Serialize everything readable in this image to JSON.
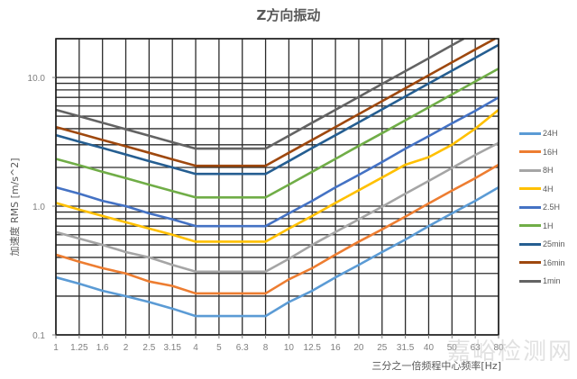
{
  "page": {
    "title": "Z方向振动",
    "ylabel": "加速度 RMS [m/s^2]",
    "xlabel": "三分之一倍频程中心频率[Hz]",
    "watermark": "嘉峪检测网"
  },
  "chart_data": {
    "type": "line",
    "title": "Z方向振动",
    "xlabel": "三分之一倍频程中心频率[Hz]",
    "ylabel": "加速度 RMS [m/s^2]",
    "yscale": "log",
    "ylim": [
      0.1,
      20
    ],
    "yticks": [
      {
        "value": 0.1,
        "label": "0.1"
      },
      {
        "value": 1.0,
        "label": "1.0"
      },
      {
        "value": 10.0,
        "label": "10.0"
      }
    ],
    "grid": true,
    "legend_position": "right",
    "categories": [
      "1",
      "1.25",
      "1.6",
      "2",
      "2.5",
      "3.15",
      "4",
      "5",
      "6.3",
      "8",
      "10",
      "12.5",
      "16",
      "20",
      "25",
      "31.5",
      "40",
      "50",
      "63",
      "80"
    ],
    "series": [
      {
        "name": "24H",
        "color": "#5b9bd5",
        "values": [
          0.28,
          0.25,
          0.22,
          0.2,
          0.18,
          0.16,
          0.14,
          0.14,
          0.14,
          0.14,
          0.18,
          0.22,
          0.28,
          0.35,
          0.44,
          0.55,
          0.7,
          0.88,
          1.1,
          1.4
        ]
      },
      {
        "name": "16H",
        "color": "#ed7d31",
        "values": [
          0.42,
          0.37,
          0.33,
          0.3,
          0.26,
          0.24,
          0.21,
          0.21,
          0.21,
          0.21,
          0.27,
          0.33,
          0.42,
          0.53,
          0.66,
          0.83,
          1.05,
          1.32,
          1.65,
          2.1
        ]
      },
      {
        "name": "8H",
        "color": "#a5a5a5",
        "values": [
          0.63,
          0.56,
          0.5,
          0.44,
          0.4,
          0.35,
          0.31,
          0.31,
          0.31,
          0.31,
          0.39,
          0.5,
          0.63,
          0.79,
          0.99,
          1.25,
          1.57,
          1.98,
          2.5,
          3.1
        ]
      },
      {
        "name": "4H",
        "color": "#ffc000",
        "values": [
          1.06,
          0.94,
          0.84,
          0.75,
          0.67,
          0.6,
          0.53,
          0.53,
          0.53,
          0.53,
          0.67,
          0.84,
          1.06,
          1.33,
          1.67,
          2.1,
          2.4,
          3.0,
          4.0,
          5.6
        ]
      },
      {
        "name": "2.5H",
        "color": "#4472c4",
        "values": [
          1.4,
          1.25,
          1.1,
          1.0,
          0.88,
          0.79,
          0.7,
          0.7,
          0.7,
          0.7,
          0.88,
          1.1,
          1.4,
          1.75,
          2.2,
          2.8,
          3.5,
          4.4,
          5.5,
          7.0
        ]
      },
      {
        "name": "1H",
        "color": "#70ad47",
        "values": [
          2.33,
          2.08,
          1.85,
          1.65,
          1.47,
          1.31,
          1.17,
          1.17,
          1.17,
          1.17,
          1.47,
          1.85,
          2.33,
          2.94,
          3.69,
          4.65,
          5.86,
          7.38,
          9.3,
          11.7
        ]
      },
      {
        "name": "25min",
        "color": "#255e91",
        "values": [
          3.56,
          3.17,
          2.83,
          2.52,
          2.24,
          2.0,
          1.78,
          1.78,
          1.78,
          1.78,
          2.24,
          2.83,
          3.56,
          4.48,
          5.65,
          7.12,
          8.97,
          11.3,
          14.2,
          17.9
        ]
      },
      {
        "name": "16min",
        "color": "#9e480e",
        "values": [
          4.12,
          3.67,
          3.27,
          2.92,
          2.6,
          2.31,
          2.06,
          2.06,
          2.06,
          2.06,
          2.6,
          3.27,
          4.12,
          5.19,
          6.54,
          8.24,
          10.4,
          13.1,
          16.5,
          20.7
        ]
      },
      {
        "name": "1min",
        "color": "#636363",
        "values": [
          5.6,
          5.0,
          4.45,
          3.96,
          3.53,
          3.14,
          2.8,
          2.8,
          2.8,
          2.8,
          3.53,
          4.45,
          5.6,
          7.06,
          8.9,
          11.2,
          14.1,
          17.8,
          22.4,
          28.2
        ]
      }
    ]
  }
}
